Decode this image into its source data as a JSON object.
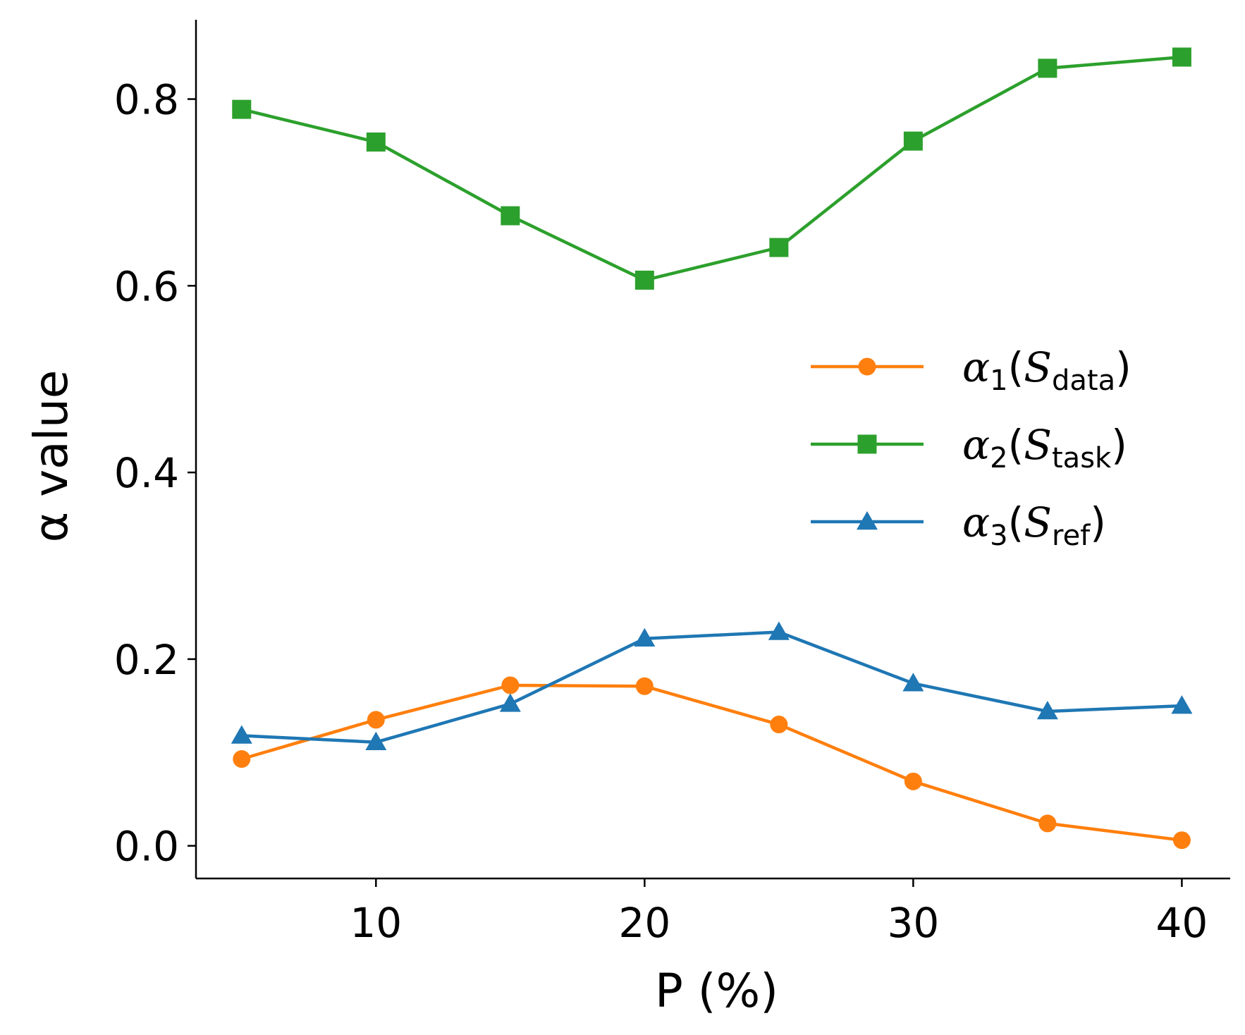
{
  "chart_data": {
    "type": "line",
    "title": "",
    "xlabel": "P (%)",
    "ylabel": "α value",
    "xlim": [
      3.3,
      41.8
    ],
    "ylim": [
      -0.035,
      0.885
    ],
    "x": [
      5,
      10,
      15,
      20,
      25,
      30,
      35,
      40
    ],
    "xticks": [
      10,
      20,
      30,
      40
    ],
    "xtick_labels": [
      "10",
      "20",
      "30",
      "40"
    ],
    "yticks": [
      0.0,
      0.2,
      0.4,
      0.6,
      0.8
    ],
    "ytick_labels": [
      "0.0",
      "0.2",
      "0.4",
      "0.6",
      "0.8"
    ],
    "legend_position": "center-right",
    "series": [
      {
        "name": "α1(Sdata)",
        "symbol": "α",
        "index": "1",
        "set": "S",
        "subscript": "data",
        "color": "#ff7f0e",
        "marker": "circle",
        "values": [
          0.093,
          0.135,
          0.172,
          0.171,
          0.13,
          0.069,
          0.024,
          0.006
        ]
      },
      {
        "name": "α2(Stask)",
        "symbol": "α",
        "index": "2",
        "set": "S",
        "subscript": "task",
        "color": "#2ca02c",
        "marker": "square",
        "values": [
          0.789,
          0.754,
          0.675,
          0.606,
          0.641,
          0.755,
          0.833,
          0.845
        ]
      },
      {
        "name": "α3(Sref)",
        "symbol": "α",
        "index": "3",
        "set": "S",
        "subscript": "ref",
        "color": "#1f77b4",
        "marker": "triangle",
        "values": [
          0.118,
          0.111,
          0.152,
          0.222,
          0.229,
          0.174,
          0.144,
          0.15
        ]
      }
    ]
  }
}
